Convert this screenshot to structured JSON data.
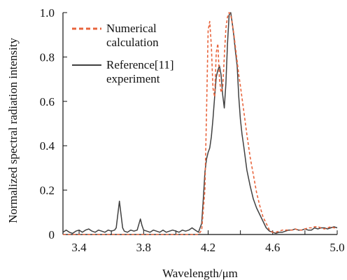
{
  "chart_data": {
    "type": "line",
    "title": "",
    "xlabel": "Wavelength/μm",
    "ylabel": "Normalized spectral radiation intensity",
    "xlim": [
      3.3,
      5.0
    ],
    "ylim": [
      0,
      1.0
    ],
    "xticks": [
      3.4,
      3.6,
      3.8,
      4.0,
      4.2,
      4.4,
      4.6,
      4.8,
      5.0
    ],
    "xtick_labels": [
      "3.4",
      "",
      "3.8",
      "",
      "4.2",
      "",
      "4.6",
      "",
      "5.0"
    ],
    "yticks": [
      0,
      0.2,
      0.4,
      0.6,
      0.8,
      1.0
    ],
    "ytick_labels": [
      "0",
      "0.2",
      "0.4",
      "0.6",
      "0.8",
      "1.0"
    ],
    "grid": false,
    "legend_position": "top-left",
    "series": [
      {
        "name": "Numerical calculation",
        "legend_lines": [
          "Numerical",
          "calculation"
        ],
        "color": "#E8643C",
        "style": "dashed",
        "x": [
          3.3,
          4.14,
          4.16,
          4.18,
          4.19,
          4.2,
          4.21,
          4.22,
          4.23,
          4.24,
          4.25,
          4.26,
          4.27,
          4.28,
          4.29,
          4.3,
          4.31,
          4.32,
          4.33,
          4.34,
          4.35,
          4.36,
          4.37,
          4.38,
          4.39,
          4.4,
          4.42,
          4.44,
          4.46,
          4.48,
          4.5,
          4.52,
          4.54,
          4.56,
          4.58,
          4.6,
          4.62,
          4.64,
          4.66,
          4.68,
          4.7,
          4.72,
          4.74,
          4.76,
          4.78,
          4.8,
          4.82,
          4.84,
          4.86,
          4.88,
          4.9,
          4.92,
          4.94,
          4.96,
          4.98,
          5.0
        ],
        "y": [
          0.0,
          0.0,
          0.02,
          0.2,
          0.55,
          0.92,
          0.96,
          0.85,
          0.66,
          0.62,
          0.82,
          0.86,
          0.7,
          0.64,
          0.66,
          0.8,
          0.93,
          0.98,
          1.0,
          0.99,
          0.95,
          0.9,
          0.84,
          0.78,
          0.72,
          0.67,
          0.56,
          0.45,
          0.35,
          0.27,
          0.19,
          0.13,
          0.08,
          0.05,
          0.02,
          0.01,
          0.01,
          0.015,
          0.02,
          0.02,
          0.02,
          0.02,
          0.025,
          0.02,
          0.02,
          0.025,
          0.03,
          0.03,
          0.035,
          0.035,
          0.03,
          0.025,
          0.03,
          0.035,
          0.03,
          0.03
        ]
      },
      {
        "name": "Reference[11] experiment",
        "legend_lines": [
          "Reference[11]",
          "experiment"
        ],
        "color": "#404040",
        "style": "solid",
        "x": [
          3.3,
          3.32,
          3.34,
          3.36,
          3.38,
          3.4,
          3.42,
          3.44,
          3.46,
          3.48,
          3.5,
          3.52,
          3.54,
          3.56,
          3.58,
          3.6,
          3.62,
          3.63,
          3.64,
          3.65,
          3.66,
          3.67,
          3.68,
          3.7,
          3.72,
          3.74,
          3.76,
          3.77,
          3.78,
          3.79,
          3.8,
          3.82,
          3.84,
          3.86,
          3.88,
          3.9,
          3.92,
          3.94,
          3.96,
          3.98,
          4.0,
          4.02,
          4.04,
          4.06,
          4.08,
          4.1,
          4.12,
          4.14,
          4.16,
          4.17,
          4.18,
          4.19,
          4.2,
          4.21,
          4.22,
          4.23,
          4.24,
          4.25,
          4.26,
          4.27,
          4.28,
          4.29,
          4.3,
          4.31,
          4.32,
          4.33,
          4.34,
          4.35,
          4.36,
          4.37,
          4.38,
          4.39,
          4.4,
          4.41,
          4.42,
          4.44,
          4.46,
          4.48,
          4.5,
          4.52,
          4.54,
          4.56,
          4.58,
          4.6,
          4.62,
          4.64,
          4.66,
          4.68,
          4.7,
          4.72,
          4.74,
          4.76,
          4.78,
          4.8,
          4.82,
          4.84,
          4.86,
          4.88,
          4.9,
          4.92,
          4.94,
          4.96,
          4.98,
          5.0
        ],
        "y": [
          0.01,
          0.02,
          0.01,
          0.005,
          0.015,
          0.02,
          0.01,
          0.02,
          0.025,
          0.015,
          0.01,
          0.02,
          0.015,
          0.01,
          0.02,
          0.015,
          0.02,
          0.03,
          0.09,
          0.15,
          0.09,
          0.03,
          0.015,
          0.01,
          0.02,
          0.015,
          0.02,
          0.045,
          0.07,
          0.04,
          0.02,
          0.015,
          0.01,
          0.02,
          0.015,
          0.01,
          0.02,
          0.01,
          0.015,
          0.02,
          0.015,
          0.01,
          0.02,
          0.015,
          0.02,
          0.03,
          0.02,
          0.01,
          0.05,
          0.16,
          0.28,
          0.34,
          0.37,
          0.39,
          0.44,
          0.52,
          0.62,
          0.71,
          0.74,
          0.76,
          0.72,
          0.63,
          0.57,
          0.68,
          0.86,
          0.99,
          1.0,
          0.95,
          0.89,
          0.82,
          0.76,
          0.62,
          0.52,
          0.45,
          0.4,
          0.29,
          0.22,
          0.16,
          0.12,
          0.09,
          0.06,
          0.03,
          0.015,
          0.01,
          0.005,
          0.01,
          0.01,
          0.015,
          0.02,
          0.02,
          0.025,
          0.02,
          0.02,
          0.025,
          0.02,
          0.02,
          0.03,
          0.025,
          0.03,
          0.03,
          0.025,
          0.03,
          0.035,
          0.03
        ]
      }
    ]
  }
}
